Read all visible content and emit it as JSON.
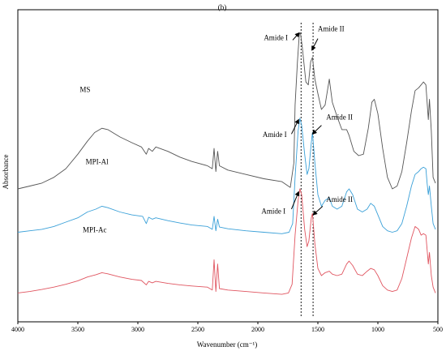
{
  "chart_data": {
    "type": "line",
    "panel_label": "(b)",
    "xlabel": "Wavenumber (cm⁻¹)",
    "ylabel": "Absorbance",
    "xlim": [
      4000,
      500
    ],
    "x_reversed": true,
    "x_ticks": [
      "4000",
      "3500",
      "3000",
      "2500",
      "2000",
      "1500",
      "1000",
      "500"
    ],
    "x_tick_values": [
      4000,
      3500,
      3000,
      2500,
      2000,
      1500,
      1000,
      500
    ],
    "y_ticks_shown": false,
    "guides": [
      1640,
      1540
    ],
    "series": [
      {
        "name": "MS",
        "color": "#555555",
        "label_at": [
          3440,
          0.695
        ],
        "points": [
          [
            4000,
            0.36
          ],
          [
            3900,
            0.37
          ],
          [
            3800,
            0.38
          ],
          [
            3700,
            0.4
          ],
          [
            3600,
            0.43
          ],
          [
            3500,
            0.48
          ],
          [
            3420,
            0.525
          ],
          [
            3360,
            0.555
          ],
          [
            3300,
            0.57
          ],
          [
            3250,
            0.565
          ],
          [
            3150,
            0.54
          ],
          [
            3050,
            0.52
          ],
          [
            2970,
            0.505
          ],
          [
            2930,
            0.48
          ],
          [
            2910,
            0.5
          ],
          [
            2880,
            0.49
          ],
          [
            2850,
            0.505
          ],
          [
            2750,
            0.49
          ],
          [
            2650,
            0.47
          ],
          [
            2550,
            0.455
          ],
          [
            2420,
            0.44
          ],
          [
            2380,
            0.43
          ],
          [
            2365,
            0.5
          ],
          [
            2350,
            0.42
          ],
          [
            2335,
            0.49
          ],
          [
            2320,
            0.44
          ],
          [
            2250,
            0.425
          ],
          [
            2100,
            0.41
          ],
          [
            1950,
            0.395
          ],
          [
            1800,
            0.385
          ],
          [
            1730,
            0.365
          ],
          [
            1700,
            0.45
          ],
          [
            1690,
            0.65
          ],
          [
            1670,
            0.8
          ],
          [
            1655,
            0.895
          ],
          [
            1645,
            0.9
          ],
          [
            1630,
            0.85
          ],
          [
            1600,
            0.73
          ],
          [
            1580,
            0.72
          ],
          [
            1560,
            0.8
          ],
          [
            1545,
            0.815
          ],
          [
            1525,
            0.74
          ],
          [
            1500,
            0.69
          ],
          [
            1470,
            0.635
          ],
          [
            1440,
            0.65
          ],
          [
            1405,
            0.74
          ],
          [
            1380,
            0.66
          ],
          [
            1340,
            0.61
          ],
          [
            1300,
            0.565
          ],
          [
            1260,
            0.565
          ],
          [
            1240,
            0.545
          ],
          [
            1200,
            0.49
          ],
          [
            1160,
            0.475
          ],
          [
            1120,
            0.48
          ],
          [
            1080,
            0.57
          ],
          [
            1050,
            0.66
          ],
          [
            1030,
            0.67
          ],
          [
            1000,
            0.62
          ],
          [
            960,
            0.5
          ],
          [
            920,
            0.4
          ],
          [
            880,
            0.36
          ],
          [
            840,
            0.37
          ],
          [
            800,
            0.42
          ],
          [
            760,
            0.52
          ],
          [
            720,
            0.63
          ],
          [
            690,
            0.7
          ],
          [
            660,
            0.71
          ],
          [
            640,
            0.72
          ],
          [
            620,
            0.73
          ],
          [
            600,
            0.72
          ],
          [
            590,
            0.66
          ],
          [
            580,
            0.6
          ],
          [
            570,
            0.67
          ],
          [
            555,
            0.56
          ],
          [
            540,
            0.4
          ],
          [
            520,
            0.38
          ]
        ]
      },
      {
        "name": "MPI-Al",
        "color": "#3aa0d8",
        "label_at": [
          3340,
          0.445
        ],
        "points": [
          [
            4000,
            0.21
          ],
          [
            3900,
            0.215
          ],
          [
            3800,
            0.22
          ],
          [
            3700,
            0.23
          ],
          [
            3600,
            0.245
          ],
          [
            3500,
            0.26
          ],
          [
            3420,
            0.28
          ],
          [
            3350,
            0.29
          ],
          [
            3300,
            0.3
          ],
          [
            3250,
            0.295
          ],
          [
            3150,
            0.28
          ],
          [
            3050,
            0.27
          ],
          [
            2960,
            0.265
          ],
          [
            2930,
            0.24
          ],
          [
            2910,
            0.262
          ],
          [
            2880,
            0.255
          ],
          [
            2850,
            0.26
          ],
          [
            2750,
            0.25
          ],
          [
            2650,
            0.242
          ],
          [
            2550,
            0.235
          ],
          [
            2420,
            0.23
          ],
          [
            2380,
            0.22
          ],
          [
            2365,
            0.265
          ],
          [
            2350,
            0.215
          ],
          [
            2335,
            0.255
          ],
          [
            2320,
            0.228
          ],
          [
            2250,
            0.222
          ],
          [
            2100,
            0.215
          ],
          [
            1950,
            0.21
          ],
          [
            1800,
            0.205
          ],
          [
            1740,
            0.21
          ],
          [
            1710,
            0.24
          ],
          [
            1690,
            0.4
          ],
          [
            1665,
            0.56
          ],
          [
            1650,
            0.605
          ],
          [
            1635,
            0.58
          ],
          [
            1610,
            0.48
          ],
          [
            1590,
            0.41
          ],
          [
            1575,
            0.43
          ],
          [
            1555,
            0.52
          ],
          [
            1545,
            0.555
          ],
          [
            1525,
            0.45
          ],
          [
            1500,
            0.34
          ],
          [
            1470,
            0.3
          ],
          [
            1440,
            0.32
          ],
          [
            1405,
            0.33
          ],
          [
            1380,
            0.3
          ],
          [
            1340,
            0.29
          ],
          [
            1300,
            0.3
          ],
          [
            1260,
            0.35
          ],
          [
            1240,
            0.36
          ],
          [
            1210,
            0.34
          ],
          [
            1170,
            0.29
          ],
          [
            1130,
            0.28
          ],
          [
            1090,
            0.29
          ],
          [
            1060,
            0.31
          ],
          [
            1030,
            0.3
          ],
          [
            1000,
            0.27
          ],
          [
            960,
            0.23
          ],
          [
            920,
            0.215
          ],
          [
            880,
            0.21
          ],
          [
            840,
            0.215
          ],
          [
            800,
            0.24
          ],
          [
            760,
            0.3
          ],
          [
            720,
            0.37
          ],
          [
            690,
            0.41
          ],
          [
            660,
            0.42
          ],
          [
            640,
            0.43
          ],
          [
            620,
            0.435
          ],
          [
            600,
            0.43
          ],
          [
            590,
            0.38
          ],
          [
            580,
            0.34
          ],
          [
            570,
            0.37
          ],
          [
            555,
            0.3
          ],
          [
            540,
            0.24
          ],
          [
            520,
            0.22
          ]
        ]
      },
      {
        "name": "MPI-Ac",
        "color": "#e05560",
        "label_at": [
          3360,
          0.21
        ],
        "points": [
          [
            4000,
            0.0
          ],
          [
            3900,
            0.005
          ],
          [
            3800,
            0.012
          ],
          [
            3700,
            0.02
          ],
          [
            3600,
            0.03
          ],
          [
            3500,
            0.042
          ],
          [
            3420,
            0.055
          ],
          [
            3350,
            0.063
          ],
          [
            3300,
            0.07
          ],
          [
            3250,
            0.066
          ],
          [
            3150,
            0.055
          ],
          [
            3050,
            0.047
          ],
          [
            2970,
            0.043
          ],
          [
            2930,
            0.028
          ],
          [
            2910,
            0.04
          ],
          [
            2880,
            0.035
          ],
          [
            2850,
            0.04
          ],
          [
            2750,
            0.033
          ],
          [
            2650,
            0.028
          ],
          [
            2550,
            0.024
          ],
          [
            2420,
            0.02
          ],
          [
            2380,
            0.01
          ],
          [
            2365,
            0.115
          ],
          [
            2350,
            0.005
          ],
          [
            2335,
            0.1
          ],
          [
            2320,
            0.015
          ],
          [
            2250,
            0.01
          ],
          [
            2100,
            0.005
          ],
          [
            1950,
            0.0
          ],
          [
            1800,
            -0.005
          ],
          [
            1745,
            0.0
          ],
          [
            1715,
            0.03
          ],
          [
            1690,
            0.2
          ],
          [
            1665,
            0.32
          ],
          [
            1650,
            0.36
          ],
          [
            1635,
            0.34
          ],
          [
            1610,
            0.22
          ],
          [
            1590,
            0.16
          ],
          [
            1575,
            0.18
          ],
          [
            1555,
            0.26
          ],
          [
            1545,
            0.275
          ],
          [
            1525,
            0.17
          ],
          [
            1500,
            0.085
          ],
          [
            1470,
            0.06
          ],
          [
            1440,
            0.07
          ],
          [
            1405,
            0.075
          ],
          [
            1380,
            0.065
          ],
          [
            1340,
            0.06
          ],
          [
            1300,
            0.065
          ],
          [
            1260,
            0.1
          ],
          [
            1240,
            0.11
          ],
          [
            1210,
            0.095
          ],
          [
            1170,
            0.065
          ],
          [
            1130,
            0.06
          ],
          [
            1090,
            0.075
          ],
          [
            1060,
            0.085
          ],
          [
            1030,
            0.08
          ],
          [
            1000,
            0.06
          ],
          [
            960,
            0.025
          ],
          [
            920,
            0.01
          ],
          [
            880,
            0.005
          ],
          [
            840,
            0.01
          ],
          [
            800,
            0.05
          ],
          [
            760,
            0.12
          ],
          [
            720,
            0.19
          ],
          [
            690,
            0.23
          ],
          [
            660,
            0.22
          ],
          [
            640,
            0.2
          ],
          [
            620,
            0.205
          ],
          [
            600,
            0.2
          ],
          [
            590,
            0.15
          ],
          [
            580,
            0.1
          ],
          [
            570,
            0.14
          ],
          [
            555,
            0.06
          ],
          [
            540,
            0.02
          ],
          [
            520,
            0.0
          ]
        ]
      }
    ],
    "annotations": [
      {
        "text": "Amide I",
        "at": [
          1850,
          0.875
        ],
        "arrow_from": [
          1710,
          0.875
        ],
        "arrow_to": [
          1655,
          0.9
        ]
      },
      {
        "text": "Amide II",
        "at": [
          1390,
          0.905
        ],
        "arrow_from": [
          1500,
          0.88
        ],
        "arrow_to": [
          1550,
          0.84
        ]
      },
      {
        "text": "Amide I",
        "at": [
          1860,
          0.54
        ],
        "arrow_from": [
          1720,
          0.55
        ],
        "arrow_to": [
          1660,
          0.6
        ]
      },
      {
        "text": "Amide II",
        "at": [
          1320,
          0.6
        ],
        "arrow_from": [
          1470,
          0.58
        ],
        "arrow_to": [
          1545,
          0.55
        ]
      },
      {
        "text": "Amide I",
        "at": [
          1870,
          0.275
        ],
        "arrow_from": [
          1720,
          0.29
        ],
        "arrow_to": [
          1660,
          0.35
        ]
      },
      {
        "text": "Amide II",
        "at": [
          1320,
          0.315
        ],
        "arrow_from": [
          1460,
          0.3
        ],
        "arrow_to": [
          1540,
          0.27
        ]
      }
    ]
  }
}
